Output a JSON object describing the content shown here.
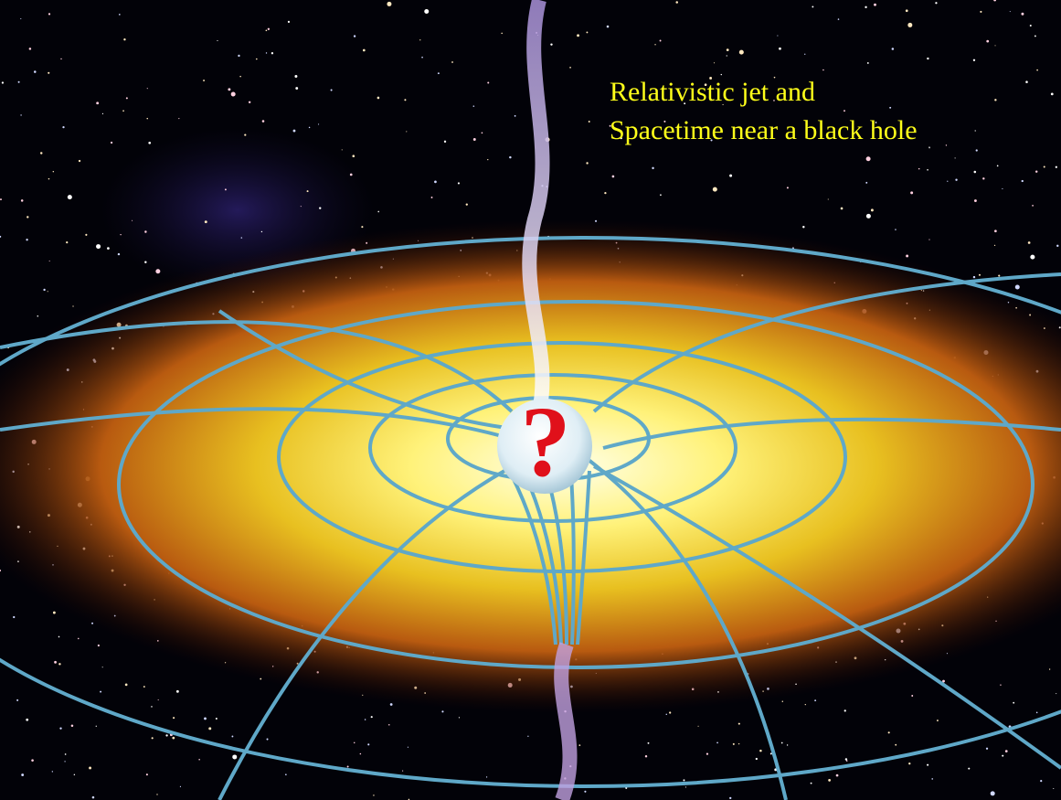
{
  "caption": {
    "lines": [
      "Relativistic jet and",
      "Spacetime near a black hole"
    ]
  },
  "marker": "?"
}
